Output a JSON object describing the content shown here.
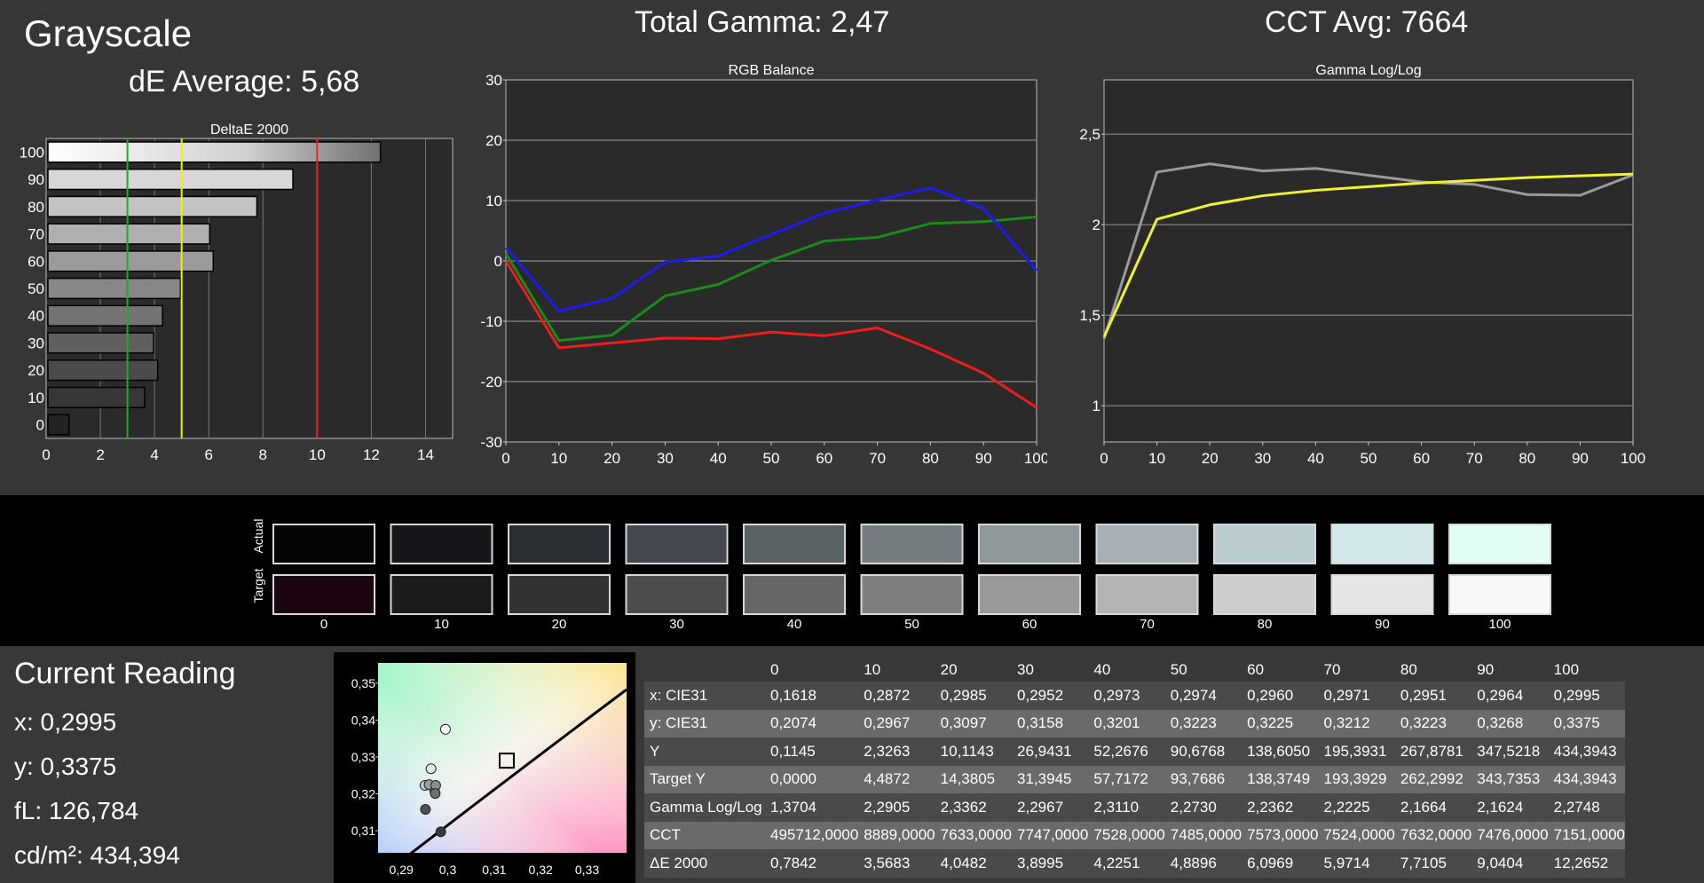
{
  "header": {
    "section_title": "Grayscale",
    "de_average": "dE Average: 5,68",
    "total_gamma": "Total Gamma: 2,47",
    "cct_avg": "CCT Avg: 7664"
  },
  "chart_data": [
    {
      "type": "bar",
      "title": "DeltaE 2000",
      "orientation": "horizontal",
      "categories": [
        "100",
        "90",
        "80",
        "70",
        "60",
        "50",
        "40",
        "30",
        "20",
        "10",
        "0"
      ],
      "values": [
        12.27,
        9.04,
        7.71,
        5.97,
        6.1,
        4.89,
        4.23,
        3.9,
        4.05,
        3.57,
        0.78
      ],
      "xlim": [
        0,
        15
      ],
      "xticks": [
        "0",
        "2",
        "4",
        "6",
        "8",
        "10",
        "12",
        "14"
      ],
      "threshold_lines": [
        {
          "value": 3,
          "color": "#22aa22"
        },
        {
          "value": 5,
          "color": "#f0f000"
        },
        {
          "value": 10,
          "color": "#ee2222"
        }
      ],
      "grid": true
    },
    {
      "type": "line",
      "title": "RGB Balance",
      "x": [
        0,
        10,
        20,
        30,
        40,
        50,
        60,
        70,
        80,
        90,
        100
      ],
      "xticks": [
        "0",
        "10",
        "20",
        "30",
        "40",
        "50",
        "60",
        "70",
        "80",
        "90",
        "100"
      ],
      "yticks": [
        "30",
        "20",
        "10",
        "0",
        "-10",
        "-20",
        "-30"
      ],
      "ylim": [
        -30,
        30
      ],
      "series": [
        {
          "color": "#ee1c1c",
          "values": [
            0,
            -14.4,
            -13.6,
            -12.8,
            -12.9,
            -11.8,
            -12.4,
            -11.1,
            -14.6,
            -18.6,
            -24.3
          ]
        },
        {
          "color": "#1a8a1a",
          "values": [
            1.2,
            -13.2,
            -12.3,
            -5.8,
            -3.9,
            0.1,
            3.3,
            3.9,
            6.2,
            6.5,
            7.3
          ]
        },
        {
          "color": "#1c1cee",
          "values": [
            2.2,
            -8.3,
            -6.2,
            -0.2,
            0.8,
            4.4,
            7.9,
            10.1,
            12.1,
            8.7,
            -1.6
          ]
        }
      ],
      "grid": true
    },
    {
      "type": "line",
      "title": "Gamma Log/Log",
      "x": [
        0,
        10,
        20,
        30,
        40,
        50,
        60,
        70,
        80,
        90,
        100
      ],
      "xticks": [
        "0",
        "10",
        "20",
        "30",
        "40",
        "50",
        "60",
        "70",
        "80",
        "90",
        "100"
      ],
      "yticks": [
        "2,5",
        "2",
        "1,5",
        "1"
      ],
      "ylim": [
        0.8,
        2.8
      ],
      "series": [
        {
          "color": "#9a9a9a",
          "values": [
            1.3704,
            2.2905,
            2.3362,
            2.2967,
            2.311,
            2.273,
            2.2362,
            2.2225,
            2.1664,
            2.1624,
            2.2748
          ]
        },
        {
          "color": "#f2f22a",
          "values": [
            1.38,
            2.03,
            2.11,
            2.16,
            2.19,
            2.21,
            2.23,
            2.245,
            2.26,
            2.27,
            2.28
          ]
        }
      ],
      "grid": true
    },
    {
      "type": "scatter",
      "title": "",
      "xticks": [
        "0,29",
        "0,3",
        "0,31",
        "0,32",
        "0,33"
      ],
      "yticks": [
        "0,35",
        "0,34",
        "0,33",
        "0,32",
        "0,31"
      ],
      "xlim": [
        0.285,
        0.3385
      ],
      "ylim": [
        0.304,
        0.3555
      ],
      "points": [
        {
          "x": 0.2995,
          "y": 0.3375,
          "color": "#ffffff"
        },
        {
          "x": 0.2964,
          "y": 0.3268,
          "color": "#e8e8e8"
        },
        {
          "x": 0.2951,
          "y": 0.3223,
          "color": "#c8c8c8"
        },
        {
          "x": 0.2971,
          "y": 0.3212,
          "color": "#b4b4b4"
        },
        {
          "x": 0.296,
          "y": 0.3225,
          "color": "#a0a0a0"
        },
        {
          "x": 0.2974,
          "y": 0.3223,
          "color": "#8c8c8c"
        },
        {
          "x": 0.2973,
          "y": 0.3201,
          "color": "#707070"
        },
        {
          "x": 0.2952,
          "y": 0.3158,
          "color": "#505050"
        },
        {
          "x": 0.2985,
          "y": 0.3097,
          "color": "#383838"
        }
      ],
      "target": {
        "x": 0.3127,
        "y": 0.329
      }
    }
  ],
  "swatches": {
    "actual_label": "Actual",
    "target_label": "Target",
    "labels": [
      "0",
      "10",
      "20",
      "30",
      "40",
      "50",
      "60",
      "70",
      "80",
      "90",
      "100"
    ],
    "actual_colors": [
      "#050508",
      "#14161a",
      "#2b2e33",
      "#43494e",
      "#5b6266",
      "#757d80",
      "#8e989b",
      "#a6b0b4",
      "#bccdd2",
      "#d2e8eb",
      "#e3fcf5"
    ],
    "target_colors": [
      "#1a0510",
      "#1b1b1b",
      "#333333",
      "#4d4d4d",
      "#666666",
      "#7f7f7f",
      "#999999",
      "#b3b3b3",
      "#cccccc",
      "#e6e6e6",
      "#f8f8f8"
    ]
  },
  "current_reading": {
    "title": "Current Reading",
    "x": "x: 0,2995",
    "y": "y: 0,3375",
    "fl": "fL: 126,784",
    "cdm2": "cd/m²: 434,394"
  },
  "table": {
    "columns": [
      "0",
      "10",
      "20",
      "30",
      "40",
      "50",
      "60",
      "70",
      "80",
      "90",
      "100"
    ],
    "rows": [
      {
        "label": "x: CIE31",
        "values": [
          "0,1618",
          "0,2872",
          "0,2985",
          "0,2952",
          "0,2973",
          "0,2974",
          "0,2960",
          "0,2971",
          "0,2951",
          "0,2964",
          "0,2995"
        ]
      },
      {
        "label": "y: CIE31",
        "values": [
          "0,2074",
          "0,2967",
          "0,3097",
          "0,3158",
          "0,3201",
          "0,3223",
          "0,3225",
          "0,3212",
          "0,3223",
          "0,3268",
          "0,3375"
        ]
      },
      {
        "label": "Y",
        "values": [
          "0,1145",
          "2,3263",
          "10,1143",
          "26,9431",
          "52,2676",
          "90,6768",
          "138,6050",
          "195,3931",
          "267,8781",
          "347,5218",
          "434,3943"
        ]
      },
      {
        "label": "Target Y",
        "values": [
          "0,0000",
          "4,4872",
          "14,3805",
          "31,3945",
          "57,7172",
          "93,7686",
          "138,3749",
          "193,3929",
          "262,2992",
          "343,7353",
          "434,3943"
        ]
      },
      {
        "label": "Gamma Log/Log",
        "values": [
          "1,3704",
          "2,2905",
          "2,3362",
          "2,2967",
          "2,3110",
          "2,2730",
          "2,2362",
          "2,2225",
          "2,1664",
          "2,1624",
          "2,2748"
        ]
      },
      {
        "label": "CCT",
        "values": [
          "495712,0000",
          "8889,0000",
          "7633,0000",
          "7747,0000",
          "7528,0000",
          "7485,0000",
          "7573,0000",
          "7524,0000",
          "7632,0000",
          "7476,0000",
          "7151,0000"
        ]
      },
      {
        "label": "ΔE 2000",
        "values": [
          "0,7842",
          "3,5683",
          "4,0482",
          "3,8995",
          "4,2251",
          "4,8896",
          "6,0969",
          "5,9714",
          "7,7105",
          "9,0404",
          "12,2652"
        ]
      }
    ]
  }
}
